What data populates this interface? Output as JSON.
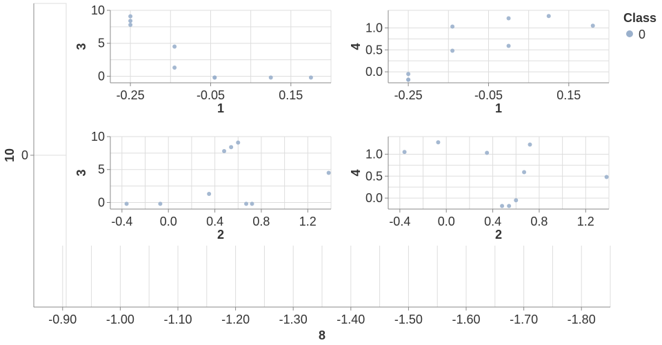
{
  "chart_data": {
    "type": "scatter",
    "point_color": "#9ab0cc",
    "legend": {
      "title": "Class",
      "entries": [
        {
          "label": "0",
          "color": "#9ab0cc"
        }
      ],
      "placement": "top-right"
    },
    "grid": true,
    "panels": [
      {
        "id": "p13",
        "xlabel": "1",
        "ylabel": "3",
        "xlim": [
          -0.3,
          0.25
        ],
        "ylim": [
          -1,
          10
        ],
        "xticks": [
          -0.25,
          -0.05,
          0.15
        ],
        "xtick_labels": [
          "-0.25",
          "-0.05",
          "0.15"
        ],
        "yticks": [
          0,
          5,
          10
        ],
        "ytick_labels": [
          "0",
          "5",
          "10"
        ],
        "x": [
          -0.25,
          -0.25,
          -0.25,
          -0.14,
          -0.14,
          -0.04,
          -0.04,
          0.1,
          0.2
        ],
        "y": [
          9.1,
          8.4,
          7.8,
          4.5,
          1.3,
          -0.2,
          -0.2,
          -0.2,
          -0.2
        ]
      },
      {
        "id": "p14",
        "xlabel": "1",
        "ylabel": "4",
        "xlim": [
          -0.3,
          0.25
        ],
        "ylim": [
          -0.25,
          1.4
        ],
        "xticks": [
          -0.25,
          -0.05,
          0.15
        ],
        "xtick_labels": [
          "-0.25",
          "-0.05",
          "0.15"
        ],
        "yticks": [
          0.0,
          0.5,
          1.0
        ],
        "ytick_labels": [
          "0.0",
          "0.5",
          "1.0"
        ],
        "x": [
          -0.25,
          -0.25,
          -0.25,
          -0.14,
          -0.14,
          0.0,
          0.0,
          0.1,
          0.21
        ],
        "y": [
          -0.05,
          -0.18,
          -0.18,
          1.03,
          0.48,
          1.22,
          0.59,
          1.27,
          1.05
        ]
      },
      {
        "id": "p23",
        "xlabel": "2",
        "ylabel": "3",
        "xlim": [
          -0.5,
          1.4
        ],
        "ylim": [
          -1,
          10
        ],
        "xticks": [
          -0.4,
          0.0,
          0.4,
          0.8,
          1.2
        ],
        "xtick_labels": [
          "-0.4",
          "0.0",
          "0.4",
          "0.8",
          "1.2"
        ],
        "yticks": [
          0,
          5,
          10
        ],
        "ytick_labels": [
          "0",
          "5",
          "10"
        ],
        "x": [
          -0.36,
          -0.07,
          0.35,
          0.48,
          0.54,
          0.6,
          0.67,
          0.72,
          1.38
        ],
        "y": [
          -0.2,
          -0.2,
          1.3,
          7.8,
          8.4,
          9.1,
          -0.2,
          -0.2,
          4.5
        ]
      },
      {
        "id": "p24",
        "xlabel": "2",
        "ylabel": "4",
        "xlim": [
          -0.5,
          1.4
        ],
        "ylim": [
          -0.25,
          1.4
        ],
        "xticks": [
          -0.4,
          0.0,
          0.4,
          0.8,
          1.2
        ],
        "xtick_labels": [
          "-0.4",
          "0.0",
          "0.4",
          "0.8",
          "1.2"
        ],
        "yticks": [
          0.0,
          0.5,
          1.0
        ],
        "ytick_labels": [
          "0.0",
          "0.5",
          "1.0"
        ],
        "x": [
          -0.36,
          -0.07,
          0.35,
          0.48,
          0.54,
          0.6,
          0.67,
          0.72,
          1.38
        ],
        "y": [
          1.05,
          1.27,
          1.03,
          -0.18,
          -0.18,
          -0.05,
          0.59,
          1.22,
          0.48
        ]
      },
      {
        "id": "p10",
        "xlabel": "",
        "ylabel": "10",
        "yticks": [
          0
        ],
        "ytick_labels": [
          "0"
        ],
        "x": [],
        "y": []
      },
      {
        "id": "p8",
        "xlabel": "8",
        "ylabel": "",
        "xlim": [
          -0.85,
          -1.85
        ],
        "xticks": [
          -0.9,
          -1.0,
          -1.1,
          -1.2,
          -1.3,
          -1.4,
          -1.5,
          -1.6,
          -1.7,
          -1.8
        ],
        "xtick_labels": [
          "-0.90",
          "-1.00",
          "-1.10",
          "-1.20",
          "-1.30",
          "-1.40",
          "-1.50",
          "-1.60",
          "-1.70",
          "-1.80"
        ],
        "x": [],
        "y": []
      }
    ]
  }
}
